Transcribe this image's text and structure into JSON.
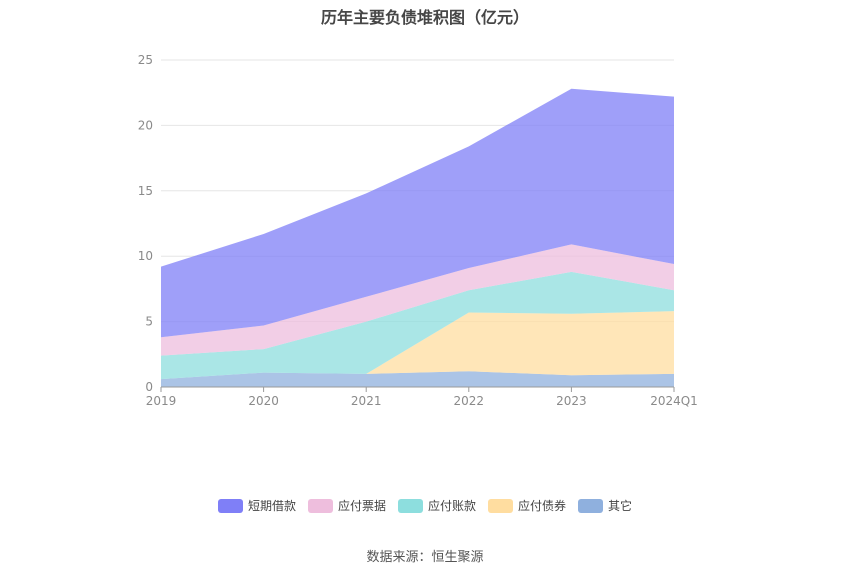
{
  "chart_data": {
    "type": "area",
    "stacked": true,
    "title": "历年主要负债堆积图（亿元）",
    "categories": [
      "2019",
      "2020",
      "2021",
      "2022",
      "2023",
      "2024Q1"
    ],
    "ylim": [
      0,
      25
    ],
    "yticks": [
      0,
      5,
      10,
      15,
      20,
      25
    ],
    "grid": true,
    "legend_position": "bottom",
    "series": [
      {
        "name": "其它",
        "color": "#8fb0de",
        "values": [
          0.6,
          1.1,
          1.0,
          1.2,
          0.9,
          1.0
        ]
      },
      {
        "name": "应付债券",
        "color": "#ffdda0",
        "values": [
          0.0,
          0.0,
          0.0,
          4.5,
          4.7,
          4.8
        ]
      },
      {
        "name": "应付账款",
        "color": "#8ddede",
        "values": [
          1.8,
          1.8,
          4.0,
          1.7,
          3.2,
          1.6
        ]
      },
      {
        "name": "应付票据",
        "color": "#eebedd",
        "values": [
          1.4,
          1.8,
          1.9,
          1.7,
          2.1,
          2.0
        ]
      },
      {
        "name": "短期借款",
        "color": "#7f7ff7",
        "values": [
          5.4,
          7.0,
          7.9,
          9.3,
          11.9,
          12.8
        ]
      }
    ],
    "legend_order": [
      "短期借款",
      "应付票据",
      "应付账款",
      "应付债券",
      "其它"
    ]
  },
  "source": "数据来源：恒生聚源"
}
